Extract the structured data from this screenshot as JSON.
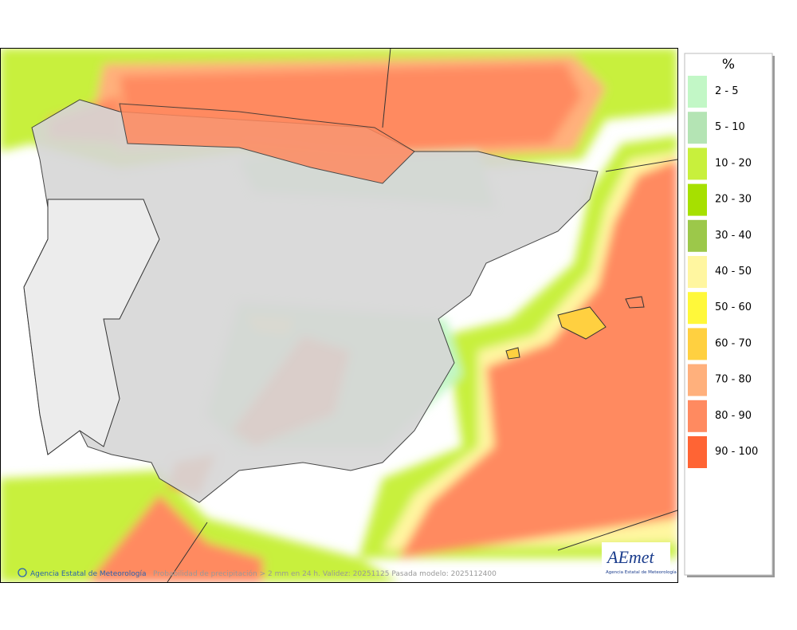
{
  "legend": {
    "title": "%",
    "items": [
      {
        "label": "2 - 5",
        "color": "#c2f7c6"
      },
      {
        "label": "5 - 10",
        "color": "#b4e4b4"
      },
      {
        "label": "10 - 20",
        "color": "#c8f03c"
      },
      {
        "label": "20 - 30",
        "color": "#a6e000"
      },
      {
        "label": "30 - 40",
        "color": "#9cc84a"
      },
      {
        "label": "40 - 50",
        "color": "#fff6a0"
      },
      {
        "label": "50 - 60",
        "color": "#fff83a"
      },
      {
        "label": "60 - 70",
        "color": "#ffd040"
      },
      {
        "label": "70 - 80",
        "color": "#ffb07c"
      },
      {
        "label": "80 - 90",
        "color": "#ff8a60"
      },
      {
        "label": "90 - 100",
        "color": "#ff6434"
      }
    ]
  },
  "footer": {
    "credit": "Agencia Estatal de Meteorología",
    "caption": "Probabilidad de precipitación > 2 mm en 24 h. Validez: 20251125 Pasada modelo: 2025112400"
  },
  "logo": {
    "name": "AEmet",
    "subtitle": "Agencia Estatal de Meteorología"
  }
}
